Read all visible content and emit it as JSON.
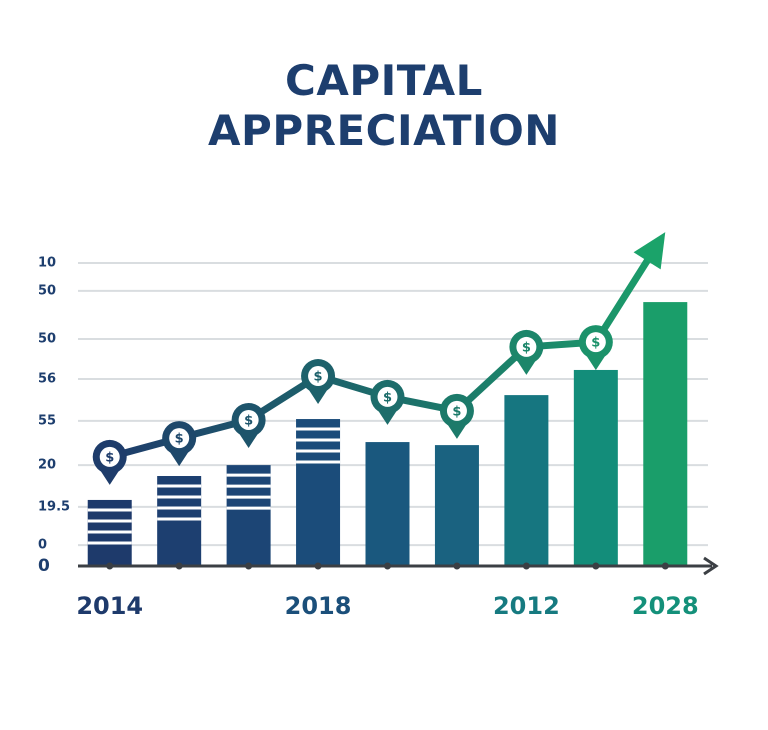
{
  "chart_data": {
    "type": "bar-line",
    "title": "CAPITAL APPRECIATION",
    "categories": [
      "2014",
      null,
      null,
      "2018",
      null,
      null,
      "2012",
      null,
      "2028"
    ],
    "label_colors": [
      "#1e3a6b",
      null,
      null,
      "#1b4f7a",
      null,
      null,
      "#167a80",
      null,
      "#14907a"
    ],
    "series": [
      {
        "type": "bar",
        "values": [
          21.8,
          29.7,
          33.3,
          48.5,
          40.9,
          39.9,
          56.4,
          64.7,
          87.1
        ],
        "colors": [
          "#1e3a6b",
          "#1d3f70",
          "#1c4575",
          "#1b4c7a",
          "#1a587e",
          "#1a6280",
          "#167680",
          "#138d7a",
          "#1a9e6a"
        ],
        "striped": [
          true,
          true,
          true,
          true,
          false,
          false,
          false,
          false,
          false
        ]
      },
      {
        "type": "line",
        "values": [
          36.0,
          42.2,
          48.2,
          62.7,
          55.8,
          51.2,
          72.3,
          73.9,
          110.2
        ],
        "gradient": [
          "#1e3a6b",
          "#1ba36a"
        ],
        "marker_label": "$"
      }
    ],
    "ylim": [
      0,
      115
    ],
    "yticks": [
      0,
      {
        "value": 6.9,
        "label": "0"
      },
      19.5,
      {
        "value": 33.3,
        "label": "20"
      },
      {
        "value": 47.9,
        "label": "55"
      },
      {
        "value": 61.7,
        "label": "56"
      },
      {
        "value": 74.9,
        "label": "50"
      },
      {
        "value": 90.8,
        "label": "50"
      },
      {
        "value": 100,
        "label": "10"
      }
    ],
    "grid": true
  }
}
